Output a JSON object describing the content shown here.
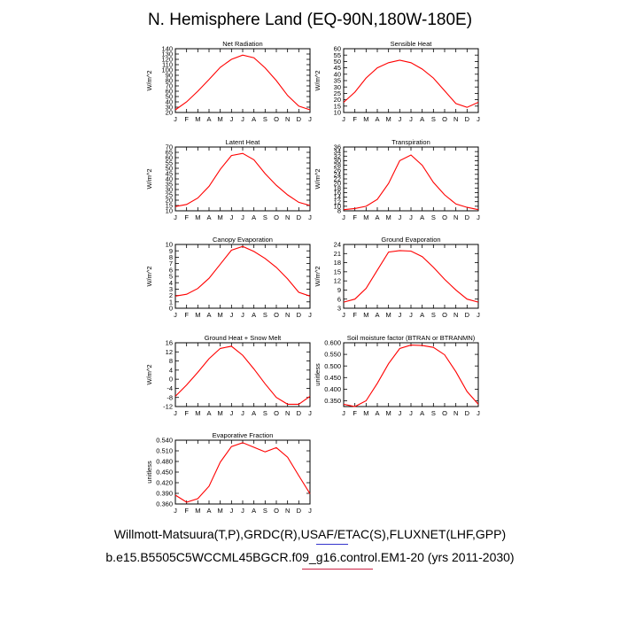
{
  "title": "N. Hemisphere Land (EQ-90N,180W-180E)",
  "footer": {
    "line1": "Willmott-Matsuura(T,P),GRDC(R),USAF/ETAC(S),FLUXNET(LHF,GPP)",
    "line2": "b.e15.B5505C5WCCML45BGCR.f09_g16.control.EM1-20 (yrs 2011-2030)"
  },
  "colors": {
    "series": "#ff0000",
    "axis": "#000000",
    "underline_blue": "#3333cc",
    "underline_red": "#cc2244"
  },
  "chart_data": [
    {
      "type": "line",
      "title": "Net Radiation",
      "ylabel": "W/m^2",
      "categories": [
        "J",
        "F",
        "M",
        "A",
        "M",
        "J",
        "J",
        "A",
        "S",
        "O",
        "N",
        "D",
        "J"
      ],
      "ylim": [
        20,
        140
      ],
      "yticks": [
        20,
        30,
        40,
        50,
        60,
        70,
        80,
        90,
        100,
        110,
        120,
        130,
        140
      ],
      "values": [
        25,
        40,
        60,
        82,
        105,
        120,
        128,
        123,
        104,
        80,
        52,
        32,
        25
      ]
    },
    {
      "type": "line",
      "title": "Sensible Heat",
      "ylabel": "W/m^2",
      "categories": [
        "J",
        "F",
        "M",
        "A",
        "M",
        "J",
        "J",
        "A",
        "S",
        "O",
        "N",
        "D",
        "J"
      ],
      "ylim": [
        10,
        60
      ],
      "yticks": [
        10,
        15,
        20,
        25,
        30,
        35,
        40,
        45,
        50,
        55,
        60
      ],
      "values": [
        18,
        26,
        37,
        45,
        49,
        51,
        49,
        44,
        37,
        27,
        17,
        14,
        18
      ]
    },
    {
      "type": "line",
      "title": "Latent Heat",
      "ylabel": "W/m^2",
      "categories": [
        "J",
        "F",
        "M",
        "A",
        "M",
        "J",
        "J",
        "A",
        "S",
        "O",
        "N",
        "D",
        "J"
      ],
      "ylim": [
        10,
        70
      ],
      "yticks": [
        10,
        15,
        20,
        25,
        30,
        35,
        40,
        45,
        50,
        55,
        60,
        65,
        70
      ],
      "values": [
        14,
        16,
        22,
        33,
        49,
        62,
        64,
        58,
        45,
        34,
        25,
        18,
        15
      ]
    },
    {
      "type": "line",
      "title": "Transpiration",
      "ylabel": "W/m^2",
      "categories": [
        "J",
        "F",
        "M",
        "A",
        "M",
        "J",
        "J",
        "A",
        "S",
        "O",
        "N",
        "D",
        "J"
      ],
      "ylim": [
        8,
        36
      ],
      "yticks": [
        8,
        10,
        12,
        14,
        16,
        18,
        20,
        22,
        24,
        26,
        28,
        30,
        32,
        34,
        36
      ],
      "values": [
        8.5,
        9,
        10,
        13,
        20,
        30,
        32.5,
        28,
        20.5,
        15,
        11,
        9.5,
        8.5
      ]
    },
    {
      "type": "line",
      "title": "Canopy Evaporation",
      "ylabel": "W/m^2",
      "categories": [
        "J",
        "F",
        "M",
        "A",
        "M",
        "J",
        "J",
        "A",
        "S",
        "O",
        "N",
        "D",
        "J"
      ],
      "ylim": [
        0,
        10
      ],
      "yticks": [
        0,
        1,
        2,
        3,
        4,
        5,
        6,
        7,
        8,
        9,
        10
      ],
      "values": [
        1.9,
        2.2,
        3.1,
        4.7,
        6.9,
        9.1,
        9.7,
        8.9,
        7.8,
        6.4,
        4.6,
        2.5,
        1.9
      ]
    },
    {
      "type": "line",
      "title": "Ground Evaporation",
      "ylabel": "W/m^2",
      "categories": [
        "J",
        "F",
        "M",
        "A",
        "M",
        "J",
        "J",
        "A",
        "S",
        "O",
        "N",
        "D",
        "J"
      ],
      "ylim": [
        3,
        24
      ],
      "yticks": [
        3,
        6,
        9,
        12,
        15,
        18,
        21,
        24
      ],
      "values": [
        5,
        6,
        9.5,
        15.5,
        21.5,
        22,
        21.8,
        20,
        16.5,
        12.5,
        9,
        6,
        5
      ]
    },
    {
      "type": "line",
      "title": "Ground Heat + Snow Melt",
      "ylabel": "W/m^2",
      "categories": [
        "J",
        "F",
        "M",
        "A",
        "M",
        "J",
        "J",
        "A",
        "S",
        "O",
        "N",
        "D",
        "J"
      ],
      "ylim": [
        -12,
        16
      ],
      "yticks": [
        -12,
        -8,
        -4,
        0,
        4,
        8,
        12,
        16
      ],
      "values": [
        -7.5,
        -2.5,
        3,
        9,
        13.5,
        14.5,
        10.5,
        4.5,
        -2,
        -8,
        -11,
        -11,
        -7.5
      ]
    },
    {
      "type": "line",
      "title": "Soil moisture factor (BTRAN or BTRANMN)",
      "ylabel": "unitless",
      "categories": [
        "J",
        "F",
        "M",
        "A",
        "M",
        "J",
        "J",
        "A",
        "S",
        "O",
        "N",
        "D",
        "J"
      ],
      "ylim": [
        0.325,
        0.6
      ],
      "yticks": [
        0.35,
        0.4,
        0.45,
        0.5,
        0.55,
        0.6
      ],
      "ytick_labels": [
        "0.350",
        "0.400",
        "0.450",
        "0.500",
        "0.550",
        "0.600"
      ],
      "values": [
        0.335,
        0.325,
        0.35,
        0.425,
        0.51,
        0.575,
        0.59,
        0.588,
        0.58,
        0.548,
        0.475,
        0.39,
        0.335
      ]
    },
    {
      "type": "line",
      "title": "Evaporative Fraction",
      "ylabel": "unitless",
      "categories": [
        "J",
        "F",
        "M",
        "A",
        "M",
        "J",
        "J",
        "A",
        "S",
        "O",
        "N",
        "D",
        "J"
      ],
      "ylim": [
        0.36,
        0.54
      ],
      "yticks": [
        0.36,
        0.39,
        0.42,
        0.45,
        0.48,
        0.51,
        0.54
      ],
      "ytick_labels": [
        "0.360",
        "0.390",
        "0.420",
        "0.450",
        "0.480",
        "0.510",
        "0.540"
      ],
      "values": [
        0.385,
        0.365,
        0.375,
        0.41,
        0.478,
        0.522,
        0.533,
        0.52,
        0.507,
        0.519,
        0.492,
        0.44,
        0.389
      ]
    }
  ]
}
